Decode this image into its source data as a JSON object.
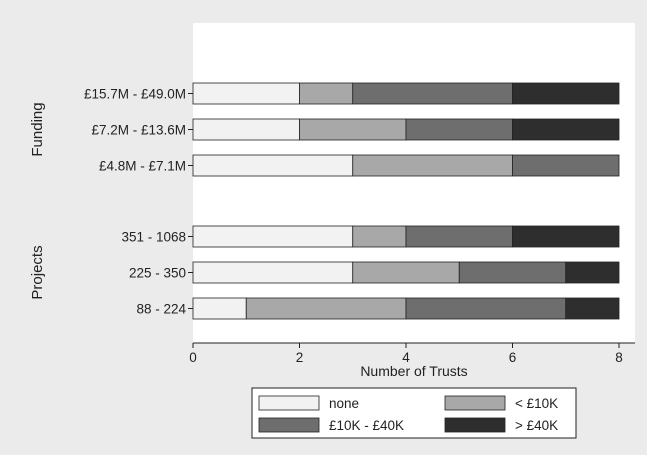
{
  "chart_data": {
    "type": "bar",
    "orientation": "horizontal",
    "stacked": true,
    "xlabel": "Number of Trusts",
    "xlim": [
      0,
      8
    ],
    "xticks": [
      0,
      2,
      4,
      6,
      8
    ],
    "grid": false,
    "legend_position": "bottom",
    "groups": [
      {
        "name": "Funding",
        "categories": [
          "£15.7M - £49.0M",
          "£7.2M - £13.6M",
          "£4.8M - £7.1M"
        ],
        "series": [
          {
            "name": "none",
            "values": [
              2,
              2,
              3
            ]
          },
          {
            "name": "< £10K",
            "values": [
              1,
              2,
              3
            ]
          },
          {
            "name": "£10K - £40K",
            "values": [
              3,
              2,
              2
            ]
          },
          {
            "name": "> £40K",
            "values": [
              2,
              2,
              0
            ]
          }
        ]
      },
      {
        "name": "Projects",
        "categories": [
          "351 - 1068",
          "225 - 350",
          "88 - 224"
        ],
        "series": [
          {
            "name": "none",
            "values": [
              3,
              3,
              1
            ]
          },
          {
            "name": "< £10K",
            "values": [
              1,
              2,
              3
            ]
          },
          {
            "name": "£10K - £40K",
            "values": [
              2,
              2,
              3
            ]
          },
          {
            "name": "> £40K",
            "values": [
              2,
              1,
              1
            ]
          }
        ]
      }
    ],
    "series_colors": [
      "#f2f2f2",
      "#a8a8a8",
      "#6e6e6e",
      "#2e2e2e"
    ]
  }
}
